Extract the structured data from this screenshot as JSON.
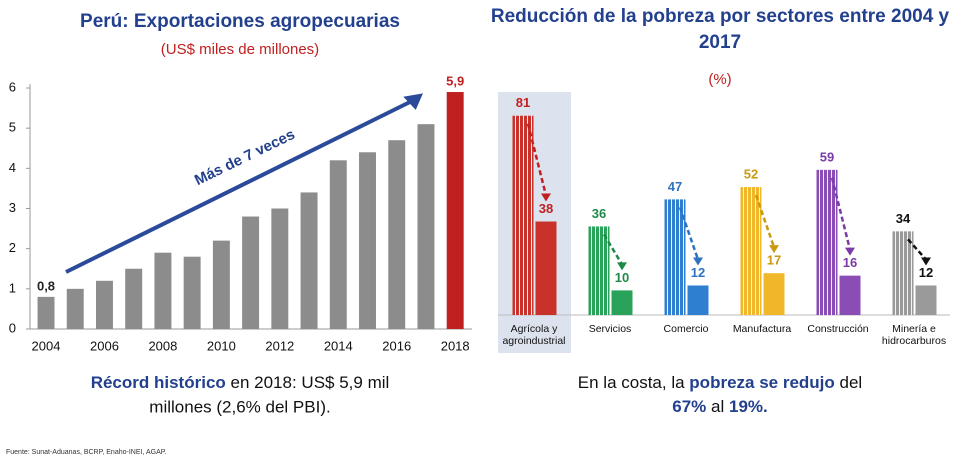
{
  "chart_data": [
    {
      "type": "bar",
      "title": "Perú: Exportaciones agropecuarias",
      "subtitle": "(US$ miles de millones)",
      "categories": [
        "2004",
        null,
        "2006",
        null,
        "2008",
        null,
        "2010",
        null,
        "2012",
        null,
        "2014",
        null,
        "2016",
        null,
        "2018"
      ],
      "values": [
        0.8,
        1.0,
        1.2,
        1.5,
        1.9,
        1.8,
        2.2,
        2.8,
        3.0,
        3.4,
        4.2,
        4.4,
        4.7,
        5.1,
        5.9
      ],
      "value_labels": [
        "0,8",
        null,
        null,
        null,
        null,
        null,
        null,
        null,
        null,
        null,
        null,
        null,
        null,
        null,
        "5,9"
      ],
      "colors": [
        "#8c8c8c",
        "#8c8c8c",
        "#8c8c8c",
        "#8c8c8c",
        "#8c8c8c",
        "#8c8c8c",
        "#8c8c8c",
        "#8c8c8c",
        "#8c8c8c",
        "#8c8c8c",
        "#8c8c8c",
        "#8c8c8c",
        "#8c8c8c",
        "#8c8c8c",
        "#c0201f"
      ],
      "ylim": [
        0,
        6
      ],
      "yticks": [
        0,
        1,
        2,
        3,
        4,
        5,
        6
      ],
      "grid": false,
      "annotation": "Más de 7 veces",
      "caption": [
        "Récord histórico",
        " en 2018: US$ 5,9 mil",
        "millones (2,6% del PBI)."
      ]
    },
    {
      "type": "paired-bar",
      "title": "Reducción de la pobreza por sectores entre 2004 y 2017",
      "subtitle": "(%)",
      "categories": [
        "Agrícola y agroindustrial",
        "Servicios",
        "Comercio",
        "Manufactura",
        "Construcción",
        "Minería e hidrocarburos"
      ],
      "colors": [
        "#c9312b",
        "#2aa35a",
        "#2f7fd0",
        "#f0b72a",
        "#8a4cb5",
        "#9a9a9a"
      ],
      "label_colors": [
        "#c0201f",
        "#1f8a48",
        "#2f72c0",
        "#c99a10",
        "#7a3aa8",
        "#111111"
      ],
      "series": [
        {
          "values": [
            81,
            36,
            47,
            52,
            59,
            34
          ],
          "style": "striped"
        },
        {
          "values": [
            38,
            10,
            12,
            17,
            16,
            12
          ],
          "style": "solid"
        }
      ],
      "highlight_category": "Agrícola y agroindustrial",
      "caption": [
        "En la costa, la ",
        "pobreza se redujo",
        " del",
        "67%",
        " al ",
        "19%."
      ]
    }
  ],
  "source": "Fuente: Sunat-Aduanas, BCRP, Enaho-INEI, AGAP."
}
